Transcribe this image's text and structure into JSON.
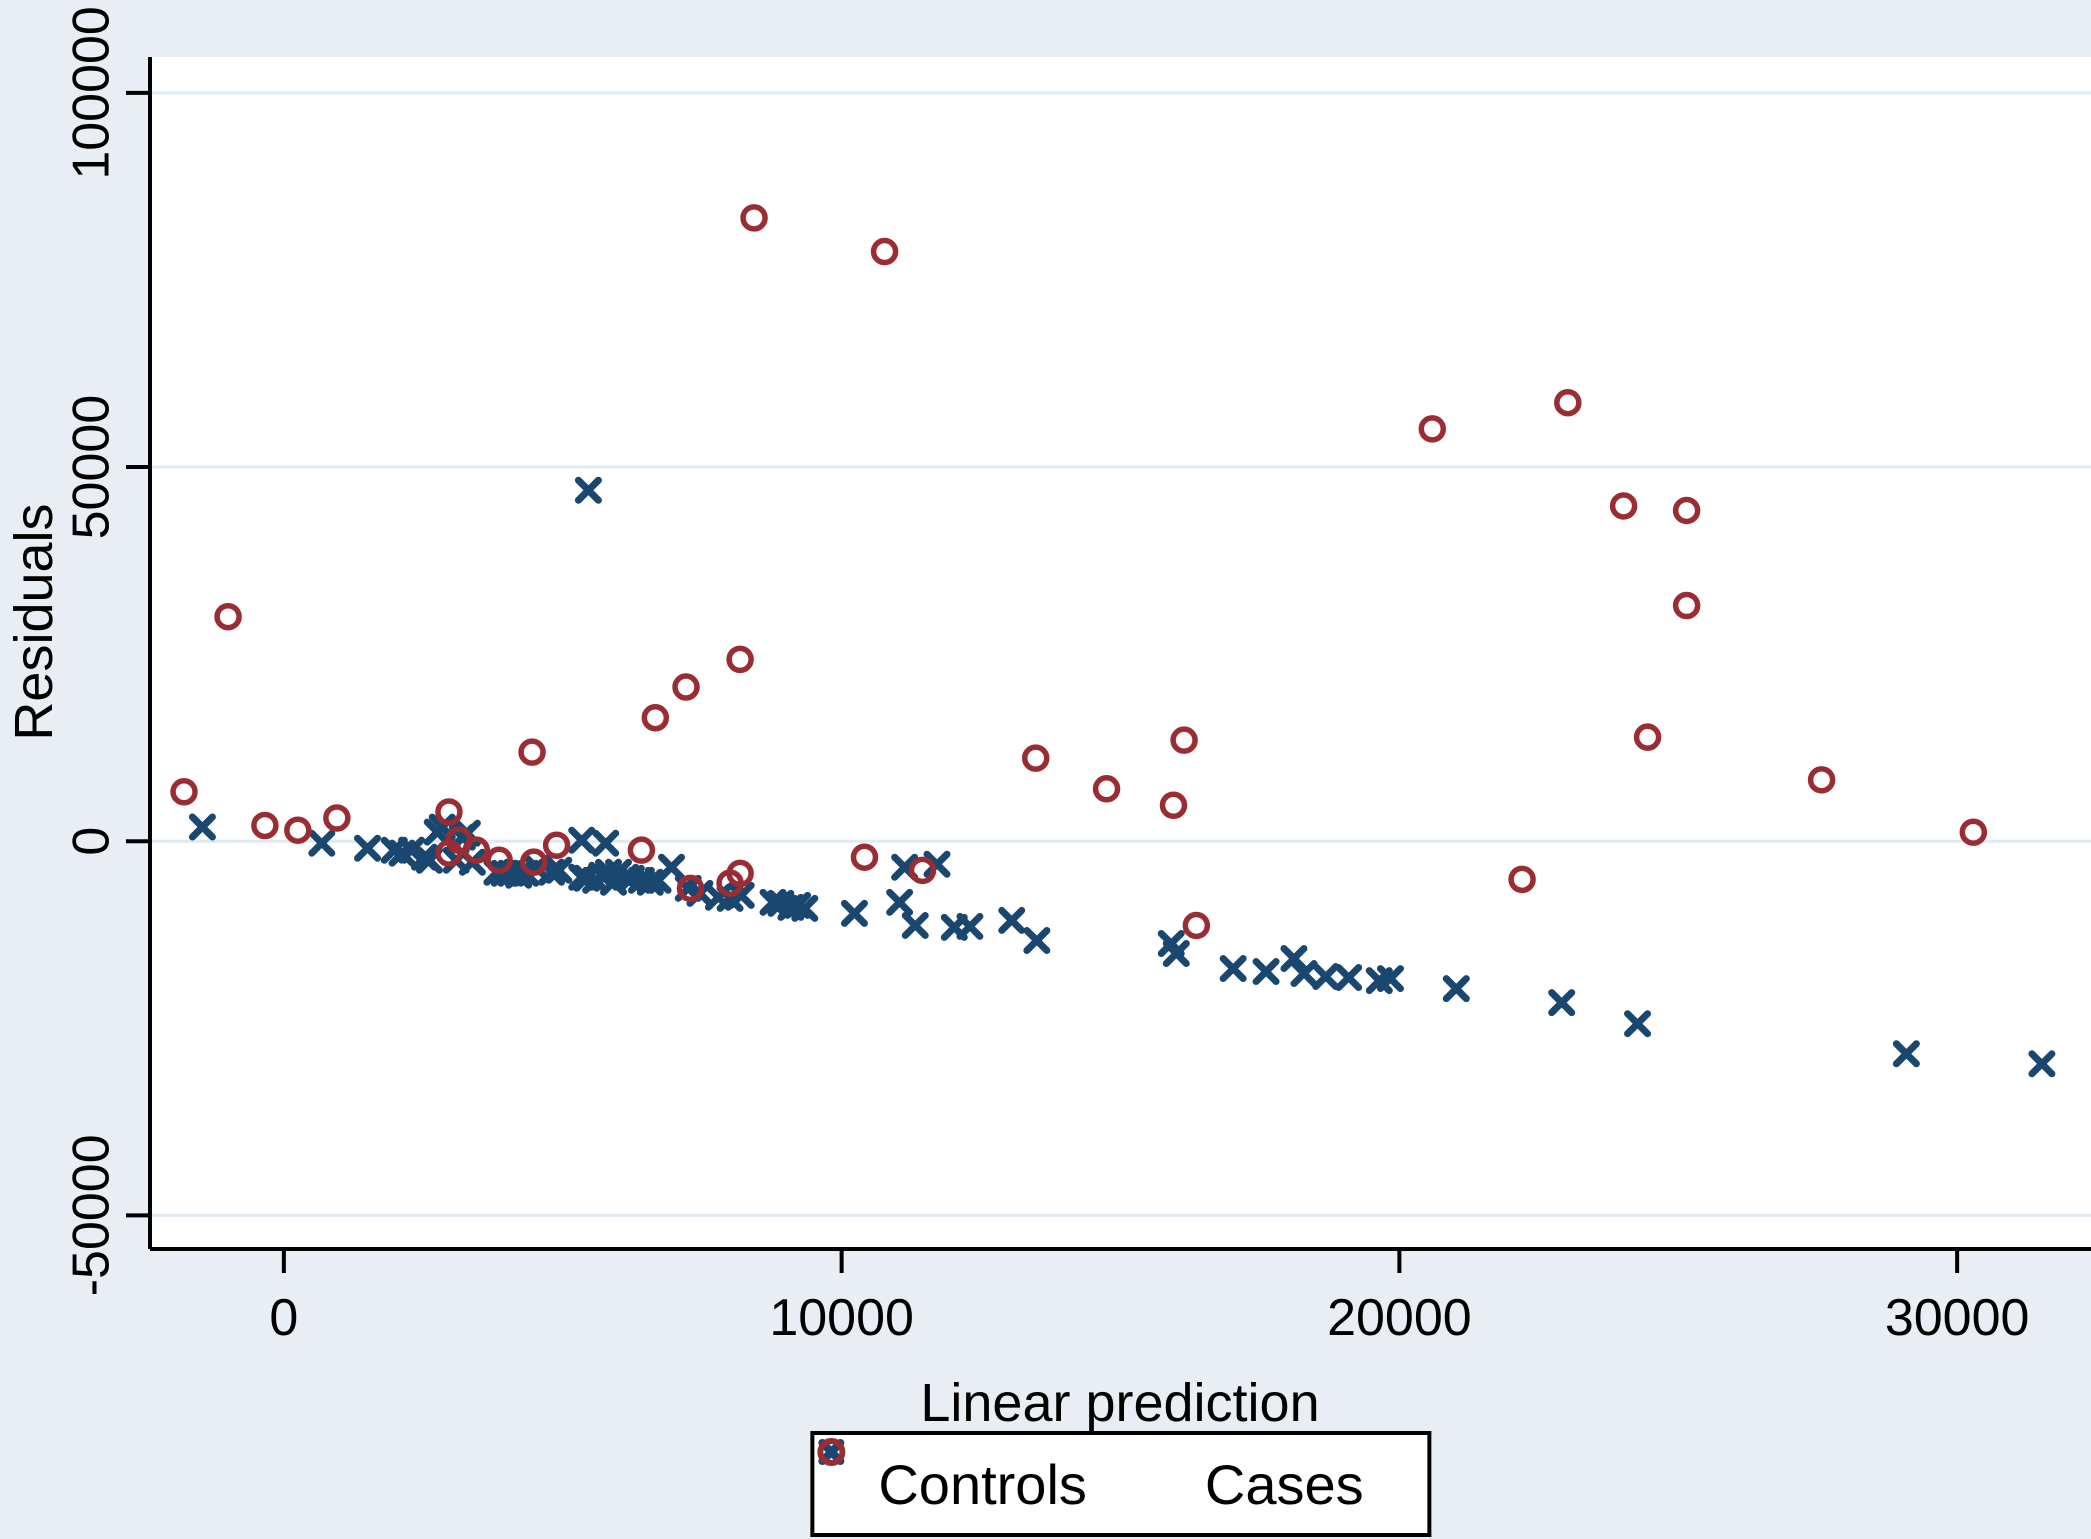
{
  "chart_data": {
    "type": "scatter",
    "title": "",
    "xlabel": "Linear prediction",
    "ylabel": "Residuals",
    "xlim": [
      -2400,
      32400
    ],
    "ylim": [
      -54500,
      104800
    ],
    "x_ticks": [
      0,
      10000,
      20000,
      30000
    ],
    "x_tick_labels": [
      "0",
      "10000",
      "20000",
      "30000"
    ],
    "y_ticks": [
      -50000,
      0,
      50000,
      100000
    ],
    "y_tick_labels": [
      "-50000",
      "0",
      "50000",
      "100000"
    ],
    "grid": "horizontal gridlines at y ticks",
    "legend_position": "bottom-center",
    "plot_bg": "#ffffff",
    "figure_bg": "#e8eef3",
    "gridline_color": "#dfeaf2",
    "axis_color": "#000000",
    "series": [
      {
        "name": "Controls",
        "marker": "x",
        "color": "#1a476f",
        "points": [
          [
            -1460,
            1900
          ],
          [
            680,
            -270
          ],
          [
            1500,
            -940
          ],
          [
            1980,
            -1210
          ],
          [
            2120,
            -1600
          ],
          [
            2290,
            -1200
          ],
          [
            2520,
            -2140
          ],
          [
            2610,
            -2550
          ],
          [
            2750,
            1210
          ],
          [
            2840,
            1880
          ],
          [
            3090,
            -2550
          ],
          [
            3200,
            540
          ],
          [
            3290,
            1070
          ],
          [
            3380,
            -2810
          ],
          [
            3820,
            -4150
          ],
          [
            3950,
            -4290
          ],
          [
            4070,
            -4290
          ],
          [
            4210,
            -4560
          ],
          [
            4340,
            -4290
          ],
          [
            4540,
            -3620
          ],
          [
            4800,
            -4150
          ],
          [
            4930,
            -3890
          ],
          [
            5340,
            130
          ],
          [
            5460,
            46900
          ],
          [
            5770,
            -270
          ],
          [
            5340,
            -4820
          ],
          [
            5430,
            -4960
          ],
          [
            5590,
            -5230
          ],
          [
            5700,
            -4560
          ],
          [
            5820,
            -4150
          ],
          [
            5910,
            -5490
          ],
          [
            6000,
            -4150
          ],
          [
            6130,
            -4820
          ],
          [
            6230,
            -4960
          ],
          [
            6410,
            -5230
          ],
          [
            6570,
            -5490
          ],
          [
            6710,
            -5230
          ],
          [
            6950,
            -3480
          ],
          [
            7250,
            -6300
          ],
          [
            7460,
            -6970
          ],
          [
            7790,
            -7500
          ],
          [
            8000,
            -7640
          ],
          [
            8200,
            -7240
          ],
          [
            8770,
            -8170
          ],
          [
            8910,
            -8310
          ],
          [
            9090,
            -8840
          ],
          [
            9210,
            -8580
          ],
          [
            9340,
            -8980
          ],
          [
            10230,
            -9650
          ],
          [
            11040,
            -8170
          ],
          [
            11130,
            -3480
          ],
          [
            11710,
            -3080
          ],
          [
            11320,
            -11260
          ],
          [
            12020,
            -11520
          ],
          [
            12300,
            -11390
          ],
          [
            13050,
            -10590
          ],
          [
            13500,
            -13270
          ],
          [
            15910,
            -13670
          ],
          [
            16000,
            -15010
          ],
          [
            17020,
            -17020
          ],
          [
            17610,
            -17420
          ],
          [
            18110,
            -15680
          ],
          [
            18290,
            -17690
          ],
          [
            18680,
            -18090
          ],
          [
            19090,
            -18220
          ],
          [
            19640,
            -18630
          ],
          [
            19840,
            -18360
          ],
          [
            21020,
            -19700
          ],
          [
            22910,
            -21570
          ],
          [
            24270,
            -24390
          ],
          [
            29090,
            -28410
          ],
          [
            31520,
            -29750
          ]
        ]
      },
      {
        "name": "Cases",
        "marker": "circle",
        "color": "#9a2d33",
        "points": [
          [
            -1790,
            6600
          ],
          [
            -1000,
            30000
          ],
          [
            -340,
            2100
          ],
          [
            250,
            1470
          ],
          [
            950,
            3100
          ],
          [
            2960,
            3900
          ],
          [
            2960,
            -1600
          ],
          [
            3140,
            130
          ],
          [
            3450,
            -1200
          ],
          [
            3860,
            -2550
          ],
          [
            4450,
            11900
          ],
          [
            4480,
            -2800
          ],
          [
            4890,
            -540
          ],
          [
            6410,
            -1200
          ],
          [
            6660,
            16500
          ],
          [
            7210,
            20600
          ],
          [
            7290,
            -6300
          ],
          [
            8000,
            -5600
          ],
          [
            8180,
            24300
          ],
          [
            8180,
            -4300
          ],
          [
            8430,
            83300
          ],
          [
            10410,
            -2140
          ],
          [
            10770,
            78800
          ],
          [
            11450,
            -3900
          ],
          [
            13480,
            11100
          ],
          [
            14750,
            7000
          ],
          [
            15950,
            4800
          ],
          [
            16140,
            13500
          ],
          [
            16360,
            -11260
          ],
          [
            20590,
            55100
          ],
          [
            22200,
            -5100
          ],
          [
            23020,
            58600
          ],
          [
            24020,
            44800
          ],
          [
            24450,
            13900
          ],
          [
            25150,
            44200
          ],
          [
            25150,
            31500
          ],
          [
            27570,
            8200
          ],
          [
            30290,
            1200
          ]
        ]
      }
    ]
  }
}
